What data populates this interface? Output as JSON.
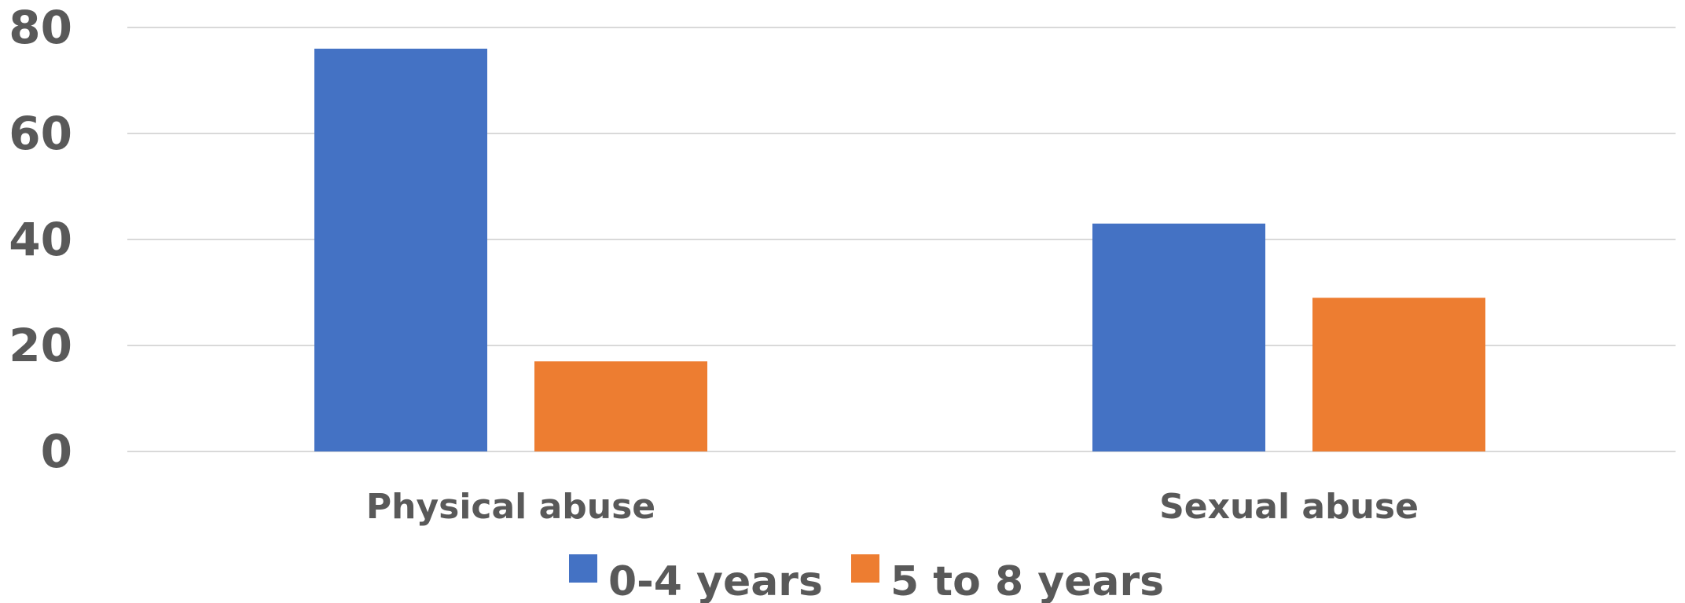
{
  "chart_data": {
    "type": "bar",
    "categories": [
      "Physical abuse",
      "Sexual abuse"
    ],
    "series": [
      {
        "name": "0-4 years",
        "values": [
          76,
          43
        ],
        "color": "#4472C4"
      },
      {
        "name": "5 to 8 years",
        "values": [
          17,
          29
        ],
        "color": "#ED7D31"
      }
    ],
    "ylim": [
      0,
      80
    ],
    "yticks": [
      "0",
      "20",
      "40",
      "60",
      "80"
    ],
    "grid": true,
    "legend_position": "bottom",
    "gridline_color": "#D9D9D9",
    "text_color": "#595959"
  }
}
